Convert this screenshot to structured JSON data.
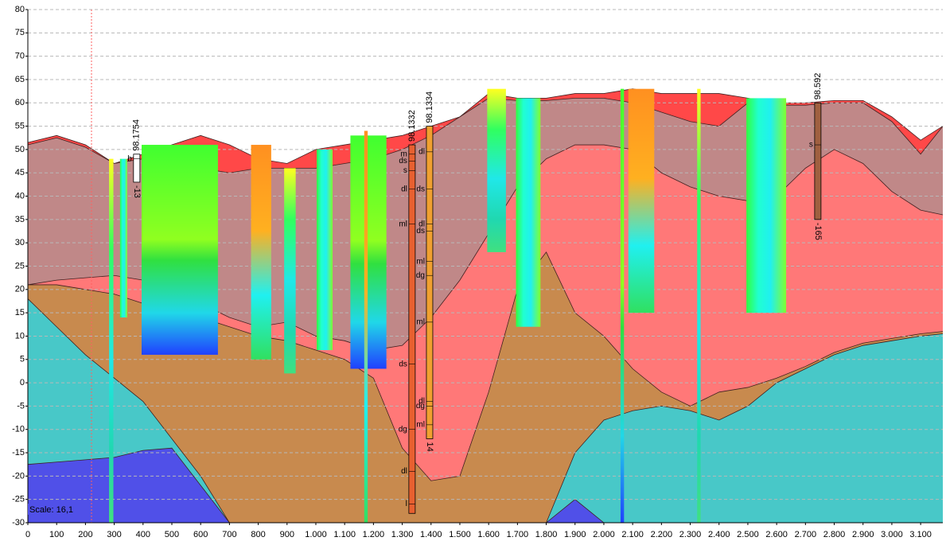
{
  "chart_data": {
    "type": "section",
    "scale_label": "Scale: 16,1",
    "xlim": [
      0,
      3177
    ],
    "ylim": [
      -30,
      80
    ],
    "grid": true,
    "yticks": [
      80,
      75,
      70,
      65,
      60,
      55,
      50,
      45,
      40,
      35,
      30,
      25,
      20,
      15,
      10,
      5,
      0,
      -5,
      -10,
      -15,
      -20,
      -25,
      -30
    ],
    "xticks": [
      0,
      100,
      200,
      300,
      400,
      500,
      600,
      700,
      800,
      900,
      {
        "value": 1000,
        "label": "1.000"
      },
      {
        "value": 1100,
        "label": "1.100"
      },
      {
        "value": 1200,
        "label": "1.200"
      },
      {
        "value": 1300,
        "label": "1.300"
      },
      {
        "value": 1400,
        "label": "1.400"
      },
      {
        "value": 1500,
        "label": "1.500"
      },
      {
        "value": 1600,
        "label": "1.600"
      },
      {
        "value": 1700,
        "label": "1.700"
      },
      {
        "value": 1800,
        "label": "1.800"
      },
      {
        "value": 1900,
        "label": "1.900"
      },
      {
        "value": 2000,
        "label": "2.000"
      },
      {
        "value": 2100,
        "label": "2.100"
      },
      {
        "value": 2200,
        "label": "2.200"
      },
      {
        "value": 2300,
        "label": "2.300"
      },
      {
        "value": 2400,
        "label": "2.400"
      },
      {
        "value": 2500,
        "label": "2.500"
      },
      {
        "value": 2600,
        "label": "2.600"
      },
      {
        "value": 2700,
        "label": "2.700"
      },
      {
        "value": 2800,
        "label": "2.800"
      },
      {
        "value": 2900,
        "label": "2.900"
      },
      {
        "value": 3000,
        "label": "3.000"
      },
      {
        "value": 3100,
        "label": "3.100"
      }
    ],
    "x": [
      0,
      100,
      200,
      300,
      400,
      500,
      600,
      700,
      800,
      900,
      1000,
      1100,
      1200,
      1300,
      1400,
      1500,
      1600,
      1700,
      1800,
      1900,
      2000,
      2100,
      2200,
      2300,
      2400,
      2500,
      2600,
      2700,
      2800,
      2900,
      3000,
      3100,
      3177
    ],
    "series": [
      {
        "color": "#ff4848",
        "values": [
          51.5,
          53,
          51,
          47,
          49,
          51,
          53,
          51,
          48,
          47,
          50,
          51,
          52,
          53,
          55,
          57,
          62,
          61,
          61,
          62,
          62,
          63,
          62,
          62,
          62,
          61,
          60,
          60,
          60.5,
          60.5,
          57,
          52,
          55
        ]
      },
      {
        "color": "#c08888",
        "values": [
          51,
          52.5,
          50.5,
          47,
          48,
          49,
          46,
          45,
          46,
          46,
          46,
          47,
          48,
          50,
          53,
          57,
          61,
          60.5,
          60.5,
          61,
          61,
          60,
          58,
          56,
          55,
          60,
          59.5,
          59.5,
          60,
          60,
          56,
          49,
          55
        ]
      },
      {
        "color": "#ff7878",
        "values": [
          21,
          22,
          22.5,
          23,
          22,
          20,
          17,
          14,
          12,
          13,
          10,
          9,
          7,
          8,
          14,
          22,
          32,
          42,
          48,
          51,
          51,
          50,
          45,
          42,
          40,
          39,
          40,
          46,
          50,
          47,
          41,
          37,
          36
        ]
      },
      {
        "color": "#c88a4e",
        "values": [
          21,
          21,
          20,
          19,
          17,
          15,
          14,
          12,
          10,
          9,
          7,
          5,
          1,
          -14,
          -21,
          -20,
          -2,
          20,
          28,
          15,
          10,
          3,
          -2,
          -5,
          -2,
          -1,
          1,
          3.5,
          6.5,
          8.5,
          9.5,
          10.5,
          11
        ]
      },
      {
        "color": "#48c8c8",
        "values": [
          18,
          12,
          6,
          1,
          -4,
          -12,
          -20,
          -30,
          -30,
          -30,
          -30,
          -30,
          -30,
          -30,
          -30,
          -30,
          -30,
          -30,
          -30,
          -15,
          -8,
          -6,
          -5,
          -6,
          -8,
          -5,
          0,
          3,
          6,
          8,
          9,
          10,
          10.5
        ]
      },
      {
        "color": "#5050e8",
        "values": [
          -17.5,
          -17,
          -16.5,
          -16,
          -14.5,
          -14,
          -22,
          -30,
          -30,
          -30,
          -30,
          -30,
          -30,
          -30,
          -30,
          -30,
          -30,
          -30,
          -30,
          -25,
          -30,
          -30,
          -30,
          -30,
          -30,
          -30,
          -30,
          -30,
          -30,
          -30,
          -30,
          -30,
          -30
        ]
      }
    ],
    "soundings": [
      {
        "x": [
          282,
          297
        ],
        "top": 48,
        "bottom": -30
      },
      {
        "x": [
          320,
          345
        ],
        "top": 48,
        "bottom": 14
      },
      {
        "x": [
          395,
          660
        ],
        "top": 51,
        "bottom": 6
      },
      {
        "x": [
          775,
          845
        ],
        "top": 51,
        "bottom": 5
      },
      {
        "x": [
          890,
          930
        ],
        "top": 46,
        "bottom": 2
      },
      {
        "x": [
          1003,
          1058
        ],
        "top": 50,
        "bottom": 7
      },
      {
        "x": [
          1120,
          1245
        ],
        "top": 53,
        "bottom": 3
      },
      {
        "x": [
          1168,
          1180
        ],
        "top": 54,
        "bottom": -30
      },
      {
        "x": [
          1595,
          1660
        ],
        "top": 63,
        "bottom": 28
      },
      {
        "x": [
          1695,
          1780
        ],
        "top": 61,
        "bottom": 12
      },
      {
        "x": [
          2058,
          2070
        ],
        "top": 63,
        "bottom": -30
      },
      {
        "x": [
          2085,
          2175
        ],
        "top": 63,
        "bottom": 15
      },
      {
        "x": [
          2324,
          2336
        ],
        "top": 63,
        "bottom": -30
      },
      {
        "x": [
          2495,
          2633
        ],
        "top": 61,
        "bottom": 15
      }
    ],
    "boreholes": [
      {
        "label": "98.1754",
        "bottom_label": "-13",
        "x": 378,
        "top": 49,
        "bottom": 43,
        "color": "#ffffff",
        "codes": [
          {
            "text": "b",
            "y": 48
          }
        ]
      },
      {
        "label": "98.1332",
        "x": 1334,
        "top": 51,
        "bottom": -28,
        "color": "#e86030",
        "codes": [
          {
            "text": "m",
            "y": 49
          },
          {
            "text": "ds",
            "y": 47.5
          },
          {
            "text": "s",
            "y": 45.5
          },
          {
            "text": "dl",
            "y": 41.5
          },
          {
            "text": "ml",
            "y": 34
          },
          {
            "text": "ds",
            "y": 4
          },
          {
            "text": "dg",
            "y": -10
          },
          {
            "text": "dl",
            "y": -19
          },
          {
            "text": "l",
            "y": -26
          }
        ]
      },
      {
        "label": "98.1334",
        "bottom_label": "14",
        "x": 1395,
        "top": 55,
        "bottom": -12,
        "color": "#f0a030",
        "codes": [
          {
            "text": "dl",
            "y": 49.5
          },
          {
            "text": "ds",
            "y": 41.5
          },
          {
            "text": "dl",
            "y": 34
          },
          {
            "text": "ds",
            "y": 32.5
          },
          {
            "text": "ml",
            "y": 26
          },
          {
            "text": "dg",
            "y": 23
          },
          {
            "text": "ml",
            "y": 13
          },
          {
            "text": "dl",
            "y": -4
          },
          {
            "text": "dg",
            "y": -5
          },
          {
            "text": "ml",
            "y": -9
          }
        ]
      },
      {
        "label": "98.592",
        "bottom_label": "-165",
        "x": 2743,
        "top": 60,
        "bottom": 35,
        "color": "#a06040",
        "codes": [
          {
            "text": "s",
            "y": 51
          }
        ]
      }
    ]
  }
}
